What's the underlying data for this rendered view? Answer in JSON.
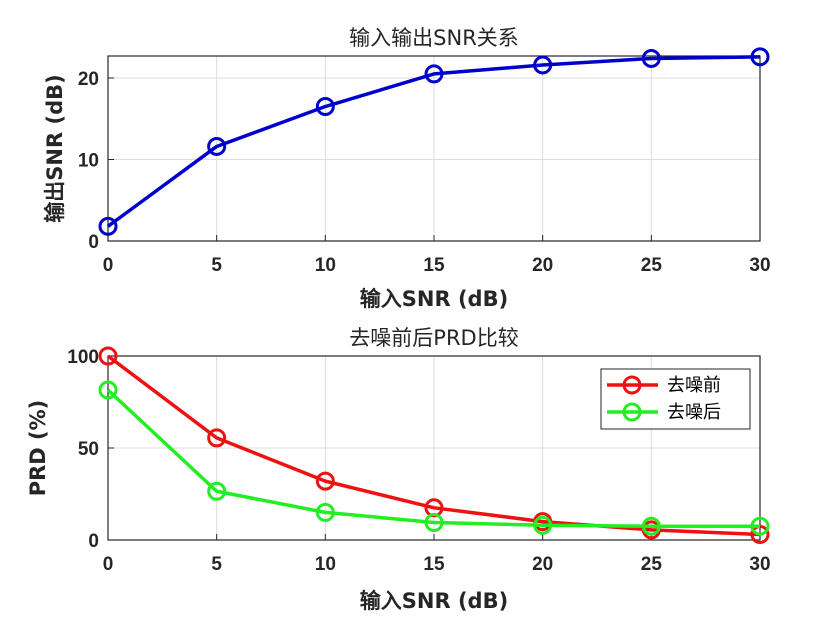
{
  "chart_data": [
    {
      "type": "line",
      "title": "输入输出SNR关系",
      "xlabel": "输入SNR (dB)",
      "ylabel": "输出SNR (dB)",
      "x": [
        0,
        5,
        10,
        15,
        20,
        25,
        30
      ],
      "xlim": [
        0,
        30
      ],
      "ylim": [
        0,
        22.7
      ],
      "xticks": [
        "0",
        "5",
        "10",
        "15",
        "20",
        "25",
        "30"
      ],
      "yticks": [
        0,
        10,
        20
      ],
      "ytick_labels": [
        "0",
        "10",
        "20"
      ],
      "grid": true,
      "series": [
        {
          "name": "输出SNR",
          "color": "#0000cc",
          "marker": "circle",
          "values": [
            1.8,
            11.6,
            16.5,
            20.5,
            21.6,
            22.4,
            22.6
          ]
        }
      ]
    },
    {
      "type": "line",
      "title": "去噪前后PRD比较",
      "xlabel": "输入SNR (dB)",
      "ylabel": "PRD (%)",
      "x": [
        0,
        5,
        10,
        15,
        20,
        25,
        30
      ],
      "xlim": [
        0,
        30
      ],
      "ylim": [
        0,
        100
      ],
      "xticks": [
        "0",
        "5",
        "10",
        "15",
        "20",
        "25",
        "30"
      ],
      "yticks": [
        0,
        50,
        100
      ],
      "ytick_labels": [
        "0",
        "50",
        "100"
      ],
      "grid": true,
      "legend_position": "top-right",
      "series": [
        {
          "name": "去噪前",
          "color": "#ee1111",
          "marker": "circle",
          "values": [
            100,
            55.5,
            32,
            17.5,
            10,
            5.5,
            3
          ]
        },
        {
          "name": "去噪后",
          "color": "#22ee22",
          "marker": "circle",
          "values": [
            81.5,
            26.5,
            15,
            9.5,
            8,
            7.5,
            7.5
          ]
        }
      ]
    }
  ]
}
